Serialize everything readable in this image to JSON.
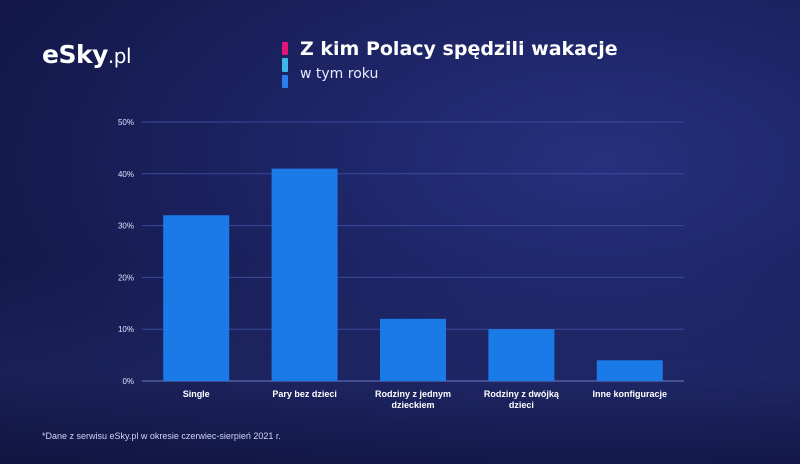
{
  "logo": {
    "brand": "eSky",
    "tld": ".pl"
  },
  "header": {
    "title": "Z kim Polacy spędzili wakacje",
    "subtitle": "w tym roku",
    "accent_colors": [
      "#e3157a",
      "#3fb6e8",
      "#2a7df0"
    ]
  },
  "footnote": "*Dane z serwisu eSky.pl w okresie czerwiec-sierpień 2021 r.",
  "chart_data": {
    "type": "bar",
    "categories": [
      [
        "Single"
      ],
      [
        "Pary bez dzieci"
      ],
      [
        "Rodziny z jednym",
        "dzieckiem"
      ],
      [
        "Rodziny z dwójką",
        "dzieci"
      ],
      [
        "Inne konfiguracje"
      ]
    ],
    "values": [
      32,
      41,
      12,
      10,
      4
    ],
    "unit": "%",
    "ylim": [
      0,
      50
    ],
    "yticks": [
      "0%",
      "10%",
      "20%",
      "30%",
      "40%",
      "50%"
    ],
    "grid": true,
    "bar_color": "#1a7be8",
    "grid_color": "#3a4a9a"
  }
}
